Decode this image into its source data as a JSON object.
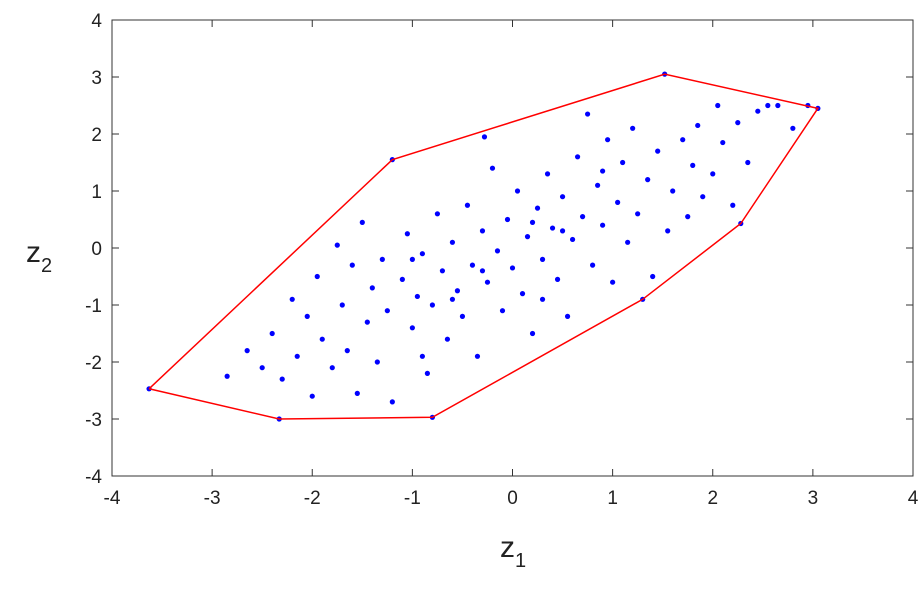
{
  "chart_data": {
    "type": "scatter",
    "xlabel": {
      "base": "z",
      "sub": "1"
    },
    "ylabel": {
      "base": "z",
      "sub": "2"
    },
    "xlim": [
      -4,
      4
    ],
    "ylim": [
      -4,
      4
    ],
    "xticks": [
      -4,
      -3,
      -2,
      -1,
      0,
      1,
      2,
      3,
      4
    ],
    "yticks": [
      -4,
      -3,
      -2,
      -1,
      0,
      1,
      2,
      3,
      4
    ],
    "grid": false,
    "series": [
      {
        "type": "scatter",
        "color": "#0000ff",
        "x": [
          -2.85,
          -2.65,
          -2.5,
          -2.4,
          -2.3,
          -2.2,
          -2.15,
          -2.05,
          -2.0,
          -1.95,
          -1.9,
          -1.8,
          -1.75,
          -1.7,
          -1.65,
          -1.6,
          -1.55,
          -1.5,
          -1.45,
          -1.4,
          -1.35,
          -1.3,
          -1.25,
          -1.2,
          -1.1,
          -1.05,
          -1.0,
          -0.95,
          -0.9,
          -0.85,
          -0.8,
          -0.75,
          -0.7,
          -0.65,
          -0.6,
          -0.55,
          -0.5,
          -0.45,
          -0.4,
          -0.35,
          -0.3,
          -0.25,
          -0.2,
          -0.15,
          -0.1,
          -0.05,
          0,
          0.05,
          0.1,
          0.15,
          0.2,
          0.25,
          0.3,
          0.35,
          0.4,
          0.45,
          0.5,
          0.55,
          0.6,
          0.65,
          0.7,
          0.75,
          0.8,
          0.85,
          0.9,
          0.95,
          1.0,
          1.05,
          1.1,
          1.15,
          1.2,
          1.25,
          1.35,
          1.4,
          1.45,
          1.55,
          1.6,
          1.7,
          1.75,
          1.8,
          1.85,
          1.9,
          2.0,
          2.05,
          2.1,
          2.2,
          2.25,
          2.35,
          2.45,
          2.55,
          2.65,
          2.8,
          2.95,
          -0.28,
          -0.6,
          0.2,
          -0.3,
          0.5,
          -1.0,
          0.3,
          0.9,
          -0.9,
          1.3,
          -1.2,
          1.52,
          3.05,
          2.28,
          -0.8,
          -2.33,
          -3.63
        ],
        "y": [
          -2.25,
          -1.8,
          -2.1,
          -1.5,
          -2.3,
          -0.9,
          -1.9,
          -1.2,
          -2.6,
          -0.5,
          -1.6,
          -2.1,
          0.05,
          -1.0,
          -1.8,
          -0.3,
          -2.55,
          0.45,
          -1.3,
          -0.7,
          -2.0,
          -0.2,
          -1.1,
          -2.7,
          -0.55,
          0.25,
          -1.4,
          -0.85,
          -0.1,
          -2.2,
          -1.0,
          0.6,
          -0.4,
          -1.6,
          0.1,
          -0.75,
          -1.2,
          0.75,
          -0.3,
          -1.9,
          0.3,
          -0.6,
          1.4,
          -0.05,
          -1.1,
          0.5,
          -0.35,
          1.0,
          -0.8,
          0.2,
          -1.5,
          0.7,
          -0.2,
          1.3,
          0.35,
          -0.55,
          0.9,
          -1.2,
          0.15,
          1.6,
          0.55,
          2.35,
          -0.3,
          1.1,
          0.4,
          1.9,
          -0.6,
          0.8,
          1.5,
          0.1,
          2.1,
          0.6,
          1.2,
          -0.5,
          1.7,
          0.3,
          1.0,
          1.9,
          0.55,
          1.45,
          2.15,
          0.9,
          1.3,
          2.5,
          1.85,
          0.75,
          2.2,
          1.5,
          2.4,
          2.5,
          2.5,
          2.1,
          2.5,
          1.95,
          -0.9,
          0.45,
          -0.4,
          0.3,
          -0.2,
          -0.9,
          1.35,
          -1.9,
          -0.9,
          1.55,
          3.05,
          2.45,
          0.43,
          -2.97,
          -3.0,
          -2.47
        ]
      },
      {
        "type": "line",
        "color": "#ff0000",
        "x": [
          -3.63,
          -1.2,
          1.52,
          3.05,
          2.28,
          1.3,
          -0.8,
          -2.33,
          -3.63
        ],
        "y": [
          -2.47,
          1.55,
          3.05,
          2.45,
          0.43,
          -0.9,
          -2.97,
          -3.0,
          -2.47
        ]
      }
    ]
  }
}
